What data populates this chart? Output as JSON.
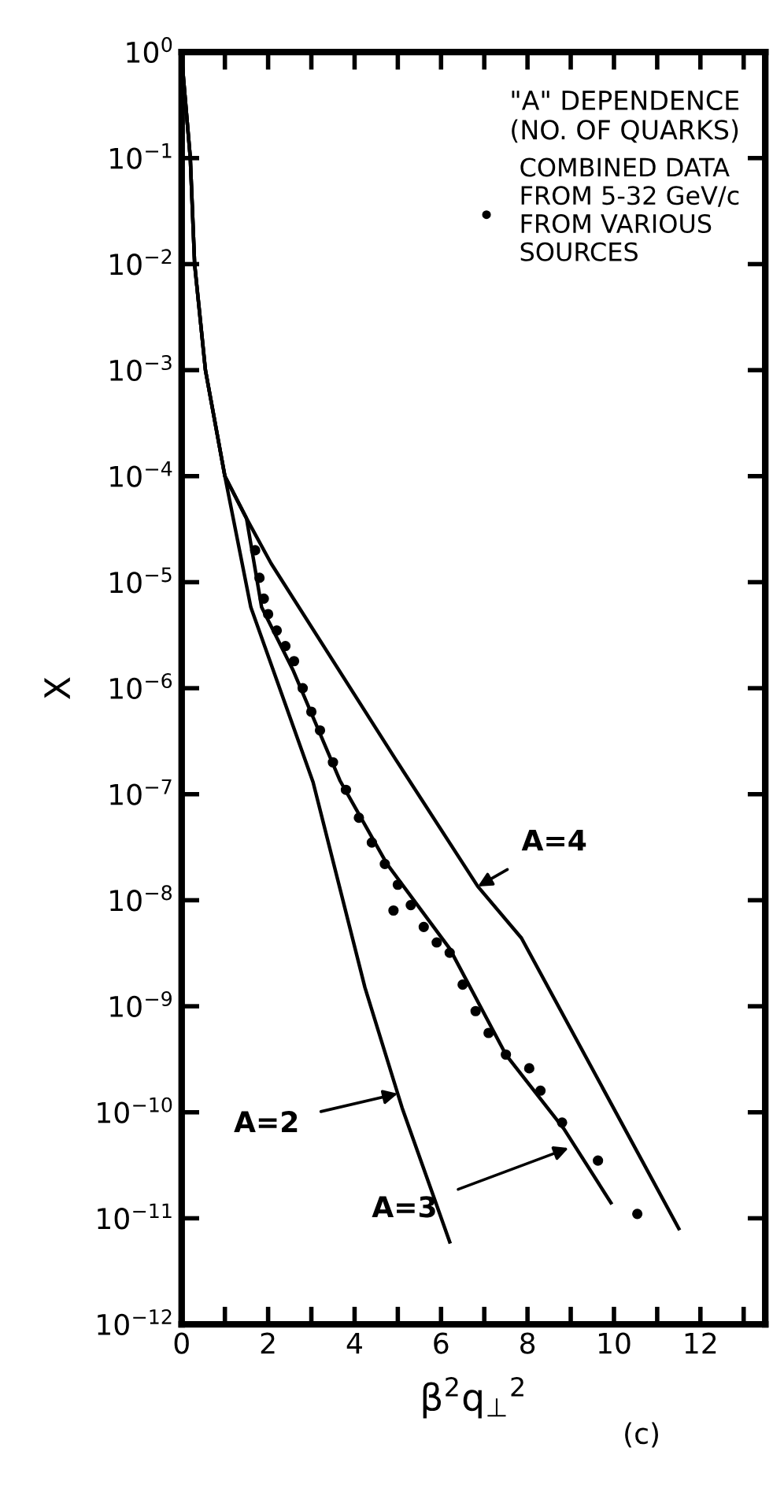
{
  "chart_data": {
    "type": "line",
    "xlabel": "β$^{2}$q$_{⊥}$$^{2}$",
    "ylabel": "X",
    "legend_title": "\"A\" DEPENDENCE\n(NO. OF QUARKS)",
    "legend": "top right",
    "log": "y",
    "grid": false,
    "xlim": [
      0,
      13.5
    ],
    "ylim": [
      1e-12,
      1
    ],
    "xticks": [
      0,
      {
        "value": 1,
        "label": null
      },
      2,
      {
        "value": 3,
        "label": null
      },
      4,
      {
        "value": 5,
        "label": null
      },
      6,
      {
        "value": 7,
        "label": null
      },
      8,
      {
        "value": 9,
        "label": null
      },
      10,
      {
        "value": 11,
        "label": null
      },
      12,
      {
        "value": 13,
        "label": null
      }
    ],
    "yticks": [
      {
        "value": 1,
        "label": "10$^{0}$"
      },
      {
        "value": 0.1,
        "label": "10$^{−1}$"
      },
      {
        "value": 0.01,
        "label": "10$^{−2}$"
      },
      {
        "value": 0.001,
        "label": "10$^{−3}$"
      },
      {
        "value": 0.0001,
        "label": "10$^{−4}$"
      },
      {
        "value": 1e-05,
        "label": "10$^{−5}$"
      },
      {
        "value": 1e-06,
        "label": "10$^{−6}$"
      },
      {
        "value": 1e-07,
        "label": "10$^{−7}$"
      },
      {
        "value": 1e-08,
        "label": "10$^{−8}$"
      },
      {
        "value": 1e-09,
        "label": "10$^{−9}$"
      },
      {
        "value": 1e-10,
        "label": "10$^{−10}$"
      },
      {
        "value": 1e-11,
        "label": "10$^{−11}$"
      },
      {
        "value": 1e-12,
        "label": "10$^{−12}$"
      }
    ],
    "series": [
      {
        "type": "scatter",
        "name": "COMBINED DATA\nFROM 5-32 GeV/c\nFROM VARIOUS\nSOURCES",
        "color": "#000000",
        "marker": "circle",
        "x": [
          1.7,
          1.8,
          1.9,
          2.0,
          2.2,
          2.4,
          2.6,
          2.8,
          3.0,
          3.2,
          3.5,
          3.8,
          4.1,
          4.4,
          4.7,
          4.9,
          5.0,
          5.3,
          5.6,
          5.9,
          6.2,
          6.5,
          6.8,
          7.1,
          7.5,
          8.04,
          8.3,
          8.8,
          9.63,
          10.54
        ],
        "values": [
          2e-05,
          1.1e-05,
          7e-06,
          5e-06,
          3.5e-06,
          2.5e-06,
          1.8e-06,
          1e-06,
          6e-07,
          4e-07,
          2e-07,
          1.1e-07,
          6e-08,
          3.5e-08,
          2.2e-08,
          8e-09,
          1.4e-08,
          9e-09,
          5.6e-09,
          4e-09,
          3.2e-09,
          1.6e-09,
          9e-10,
          5.6e-10,
          3.5e-10,
          2.6e-10,
          1.6e-10,
          8e-11,
          3.5e-11,
          1.1e-11
        ]
      },
      {
        "color": "#000000",
        "line_style": "solid",
        "x": [
          0,
          0.2,
          0.3,
          0.55,
          1.0,
          1.6,
          3.04,
          4.24,
          5.1,
          6.2
        ],
        "values": [
          0.9,
          0.1,
          0.01,
          0.001,
          0.0001,
          5.8e-06,
          1.3e-07,
          1.5e-09,
          1.1e-10,
          6e-12
        ]
      },
      {
        "color": "#000000",
        "line_style": "solid",
        "x": [
          0,
          0.2,
          0.3,
          0.55,
          1.0,
          1.5,
          1.85,
          2.57,
          3.66,
          4.75,
          6.2,
          7.5,
          8.84,
          9.93
        ],
        "values": [
          0.9,
          0.1,
          0.01,
          0.001,
          0.0001,
          4e-05,
          5.8e-06,
          1.5e-06,
          1.35e-07,
          2.2e-08,
          3.5e-09,
          3.5e-10,
          7e-11,
          1.4e-11
        ]
      },
      {
        "color": "#000000",
        "line_style": "solid",
        "x": [
          0,
          0.2,
          0.3,
          0.55,
          1.0,
          1.5,
          2.07,
          4.96,
          6.85,
          7.86,
          11.5
        ],
        "values": [
          0.9,
          0.1,
          0.01,
          0.001,
          0.0001,
          4e-05,
          1.5e-05,
          2.1e-07,
          1.35e-08,
          4.4e-09,
          8e-12
        ]
      }
    ],
    "annotations": [
      {
        "text": "A=2",
        "x": 5.0,
        "y": 1.5e-10
      },
      {
        "text": "A=3",
        "x": 8.95,
        "y": 4.6e-11
      },
      {
        "text": "A=4",
        "x": 6.85,
        "y": 1.35e-08
      },
      "(c)"
    ]
  }
}
